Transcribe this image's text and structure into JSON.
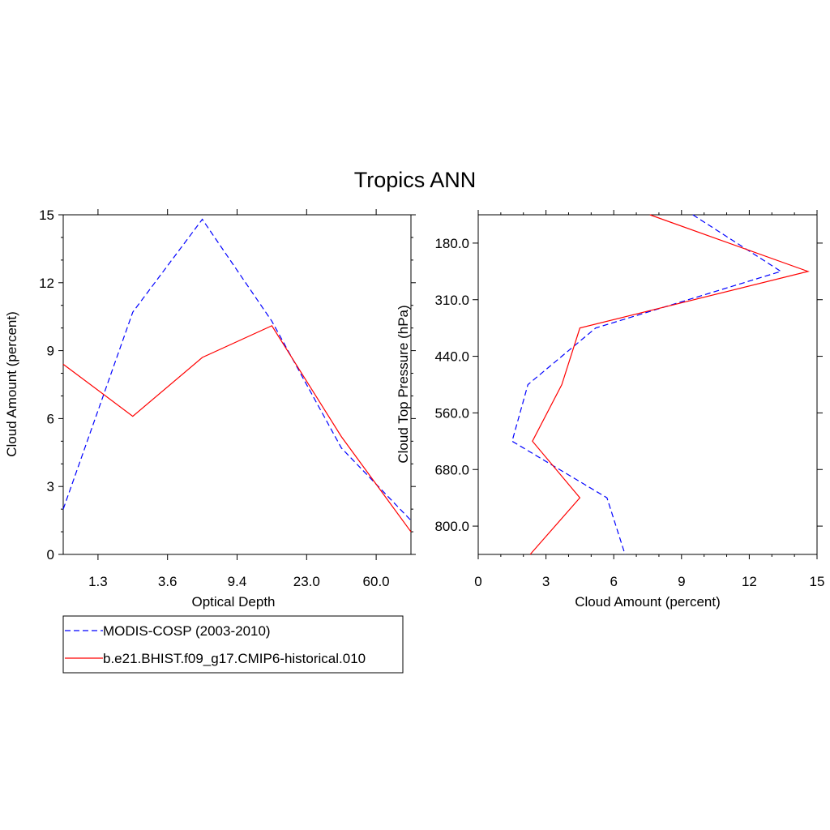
{
  "title": "Tropics ANN",
  "legend": {
    "items": [
      {
        "label": "MODIS-COSP (2003-2010)",
        "color": "#0000ff",
        "dash": true
      },
      {
        "label": "b.e21.BHIST.f09_g17.CMIP6-historical.010",
        "color": "#ff0000",
        "dash": false
      }
    ]
  },
  "chart_data": [
    {
      "type": "line",
      "title": "",
      "xlabel": "Optical Depth",
      "ylabel": "Cloud Amount (percent)",
      "x_tick_labels": [
        "1.3",
        "3.6",
        "9.4",
        "23.0",
        "60.0"
      ],
      "ylim": [
        0,
        15
      ],
      "y_ticks": [
        0,
        3,
        6,
        9,
        12,
        15
      ],
      "x": [
        0,
        1,
        2,
        3,
        4,
        5
      ],
      "series": [
        {
          "name": "MODIS-COSP (2003-2010)",
          "color": "#0000ff",
          "dash": true,
          "values": [
            2.0,
            10.7,
            14.8,
            10.3,
            4.7,
            1.5
          ]
        },
        {
          "name": "b.e21.BHIST.f09_g17.CMIP6-historical.010",
          "color": "#ff0000",
          "dash": false,
          "values": [
            8.4,
            6.1,
            8.7,
            10.1,
            5.2,
            1.0
          ]
        }
      ]
    },
    {
      "type": "line",
      "title": "",
      "xlabel": "Cloud Amount (percent)",
      "ylabel": "Cloud Top Pressure (hPa)",
      "xlim": [
        0,
        15
      ],
      "x_ticks": [
        0,
        3,
        6,
        9,
        12,
        15
      ],
      "y_tick_labels": [
        "180.0",
        "310.0",
        "440.0",
        "560.0",
        "680.0",
        "800.0"
      ],
      "y_tick_positions": [
        0.5,
        1.5,
        2.5,
        3.5,
        4.5,
        5.5
      ],
      "y": [
        0,
        1,
        2,
        3,
        4,
        5,
        6
      ],
      "series": [
        {
          "name": "MODIS-COSP (2003-2010)",
          "color": "#0000ff",
          "dash": true,
          "values": [
            9.5,
            13.4,
            5.2,
            2.2,
            1.5,
            5.7,
            6.5
          ]
        },
        {
          "name": "b.e21.BHIST.f09_g17.CMIP6-historical.010",
          "color": "#ff0000",
          "dash": false,
          "values": [
            7.6,
            14.6,
            4.5,
            3.7,
            2.4,
            4.5,
            2.3
          ]
        }
      ]
    }
  ]
}
